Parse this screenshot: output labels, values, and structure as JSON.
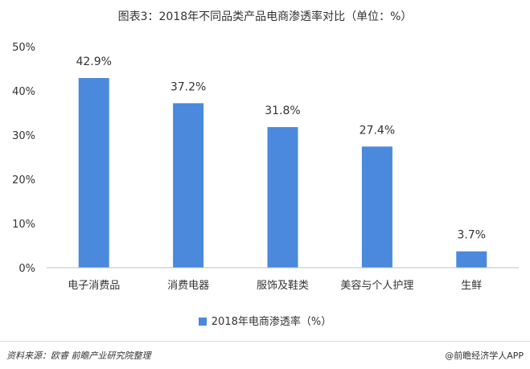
{
  "title": "图表3：2018年不同品类产品电商渗透率对比（单位：%）",
  "footer": {
    "source": "资料来源：欧睿  前瞻产业研究院整理",
    "brand": "@前瞻经济学人APP"
  },
  "chart_data": {
    "type": "bar",
    "title": "图表3：2018年不同品类产品电商渗透率对比（单位：%）",
    "categories": [
      "电子消费品",
      "消费电器",
      "服饰及鞋类",
      "美容与个人护理",
      "生鲜"
    ],
    "series": [
      {
        "name": "2018年电商渗透率（%）",
        "values": [
          42.9,
          37.2,
          31.8,
          27.4,
          3.7
        ],
        "labels": [
          "42.9%",
          "37.2%",
          "31.8%",
          "27.4%",
          "3.7%"
        ],
        "color": "#4A89DC"
      }
    ],
    "yticks": [
      "0%",
      "10%",
      "20%",
      "30%",
      "40%",
      "50%"
    ],
    "ylim": [
      0,
      50
    ],
    "grid": false,
    "legend": "bottom"
  }
}
